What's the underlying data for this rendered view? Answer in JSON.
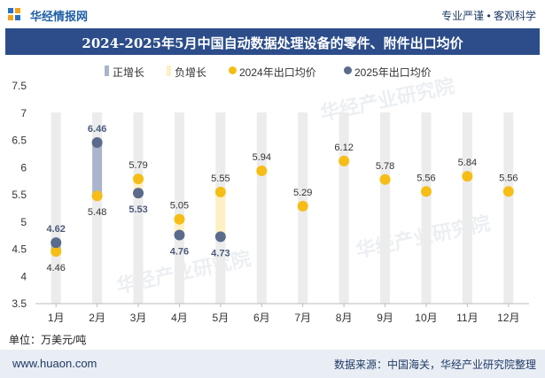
{
  "header": {
    "brand": "华经情报网",
    "tagline": "专业严谨 • 客观科学",
    "title": "2024-2025年5月中国自动数据处理设备的零件、附件出口均价"
  },
  "legend": {
    "positive": "正增长",
    "negative": "负增长",
    "series_2024": "2024年出口均价",
    "series_2025": "2025年出口均价"
  },
  "unit_label": "单位：万美元/吨",
  "footer": {
    "site": "www.huaon.com",
    "source": "数据来源：中国海关，华经产业研究院整理"
  },
  "watermark": "华经产业研究院",
  "colors": {
    "series_2024": "#f6bd16",
    "series_2025": "#5a6b8c",
    "positive_bar": "#aab4cc",
    "negative_bar": "#fdf0c4",
    "column_bg": "#ececec",
    "title_bg": "#2c4d8a"
  },
  "chart_data": {
    "type": "scatter",
    "title": "2024-2025年5月中国自动数据处理设备的零件、附件出口均价",
    "categories": [
      "1月",
      "2月",
      "3月",
      "4月",
      "5月",
      "6月",
      "7月",
      "8月",
      "9月",
      "10月",
      "11月",
      "12月"
    ],
    "y_ticks": [
      "3.5",
      "4",
      "4.5",
      "5",
      "5.5",
      "6",
      "6.5",
      "7",
      "7.5"
    ],
    "ylim": [
      3.5,
      7.5
    ],
    "grid": false,
    "legend_position": "top",
    "series": [
      {
        "name": "2024年出口均价",
        "values": [
          4.46,
          5.48,
          5.79,
          5.05,
          5.55,
          5.94,
          5.29,
          6.12,
          5.78,
          5.56,
          5.84,
          5.56
        ],
        "labels": [
          "4.46",
          "5.48",
          "5.79",
          "5.05",
          "5.55",
          "5.94",
          "5.29",
          "6.12",
          "5.78",
          "5.56",
          "5.84",
          "5.56"
        ]
      },
      {
        "name": "2025年出口均价",
        "values": [
          4.62,
          6.46,
          5.53,
          4.76,
          4.73,
          null,
          null,
          null,
          null,
          null,
          null,
          null
        ],
        "labels": [
          "4.62",
          "6.46",
          "5.53",
          "4.76",
          "4.73",
          "",
          "",
          "",
          "",
          "",
          "",
          ""
        ]
      }
    ]
  }
}
